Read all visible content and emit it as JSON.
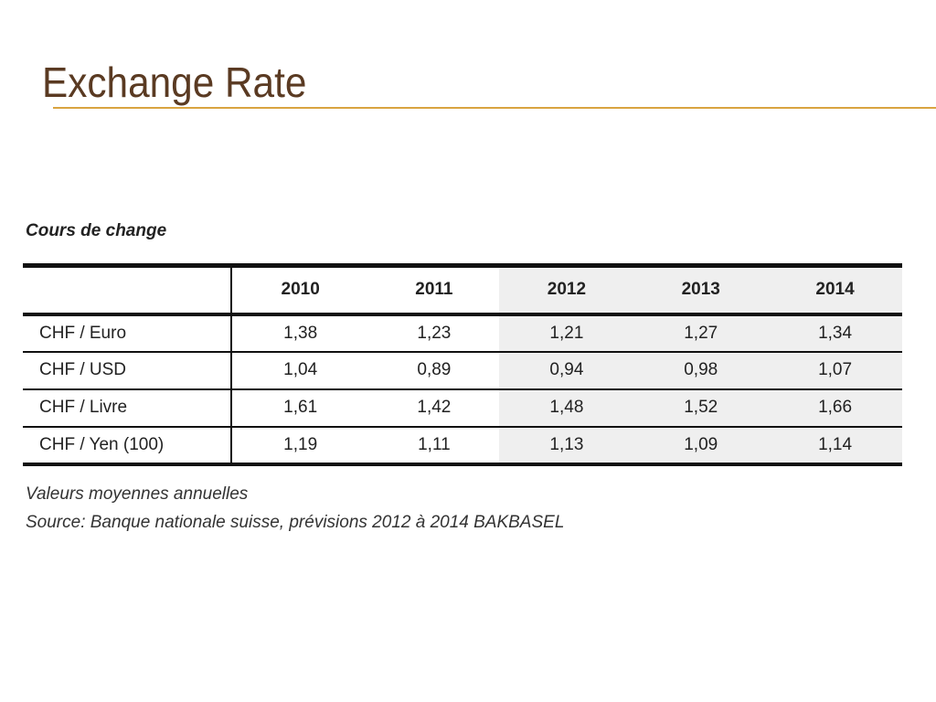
{
  "slide": {
    "title": "Exchange Rate",
    "accent_color": "#d9a441",
    "title_color": "#5a3a22"
  },
  "table": {
    "caption": "Cours de change",
    "columns": [
      "2010",
      "2011",
      "2012",
      "2013",
      "2014"
    ],
    "rows": [
      {
        "label": "CHF / Euro",
        "values": [
          "1,38",
          "1,23",
          "1,21",
          "1,27",
          "1,34"
        ]
      },
      {
        "label": "CHF / USD",
        "values": [
          "1,04",
          "0,89",
          "0,94",
          "0,98",
          "1,07"
        ]
      },
      {
        "label": "CHF / Livre",
        "values": [
          "1,61",
          "1,42",
          "1,48",
          "1,52",
          "1,66"
        ]
      },
      {
        "label": "CHF / Yen (100)",
        "values": [
          "1,19",
          "1,11",
          "1,13",
          "1,09",
          "1,14"
        ]
      }
    ],
    "notes": [
      "Valeurs moyennes annuelles",
      "Source: Banque nationale suisse, prévisions 2012 à 2014 BAKBASEL"
    ]
  }
}
